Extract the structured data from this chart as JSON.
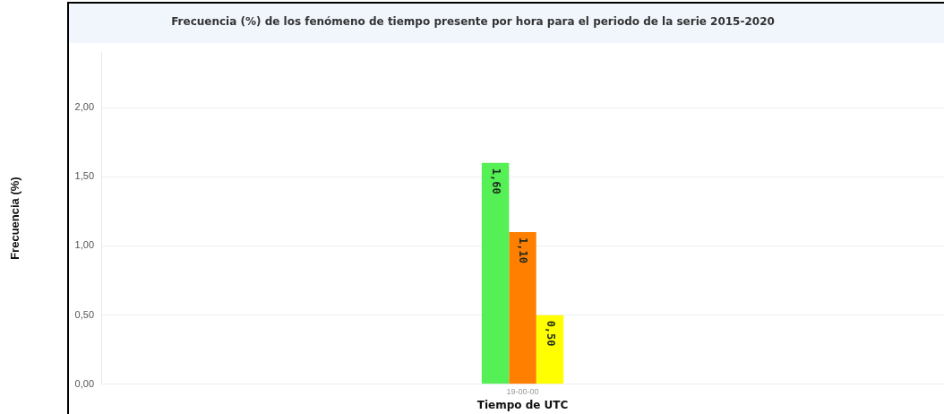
{
  "chart_data": {
    "type": "bar",
    "title": "Frecuencia (%) de los fenómeno de tiempo presente por hora para el periodo de la serie 2015-2020",
    "xlabel": "Tiempo de UTC",
    "ylabel": "Frecuencia (%)",
    "categories": [
      "19-00-00"
    ],
    "series": [
      {
        "color": "#55f055",
        "values": [
          1.6
        ],
        "value_labels": [
          "1,60"
        ]
      },
      {
        "color": "#ff7f00",
        "values": [
          1.1
        ],
        "value_labels": [
          "1,10"
        ]
      },
      {
        "color": "#ffff00",
        "values": [
          0.5
        ],
        "value_labels": [
          "0,50"
        ]
      }
    ],
    "ylim": [
      0,
      2.4
    ],
    "yticks": [
      {
        "value": 0,
        "label": "0,00"
      },
      {
        "value": 0.5,
        "label": "0,50"
      },
      {
        "value": 1,
        "label": "1,00"
      },
      {
        "value": 1.5,
        "label": "1,50"
      },
      {
        "value": 2,
        "label": "2,00"
      }
    ],
    "grid": "y",
    "legend": false
  }
}
